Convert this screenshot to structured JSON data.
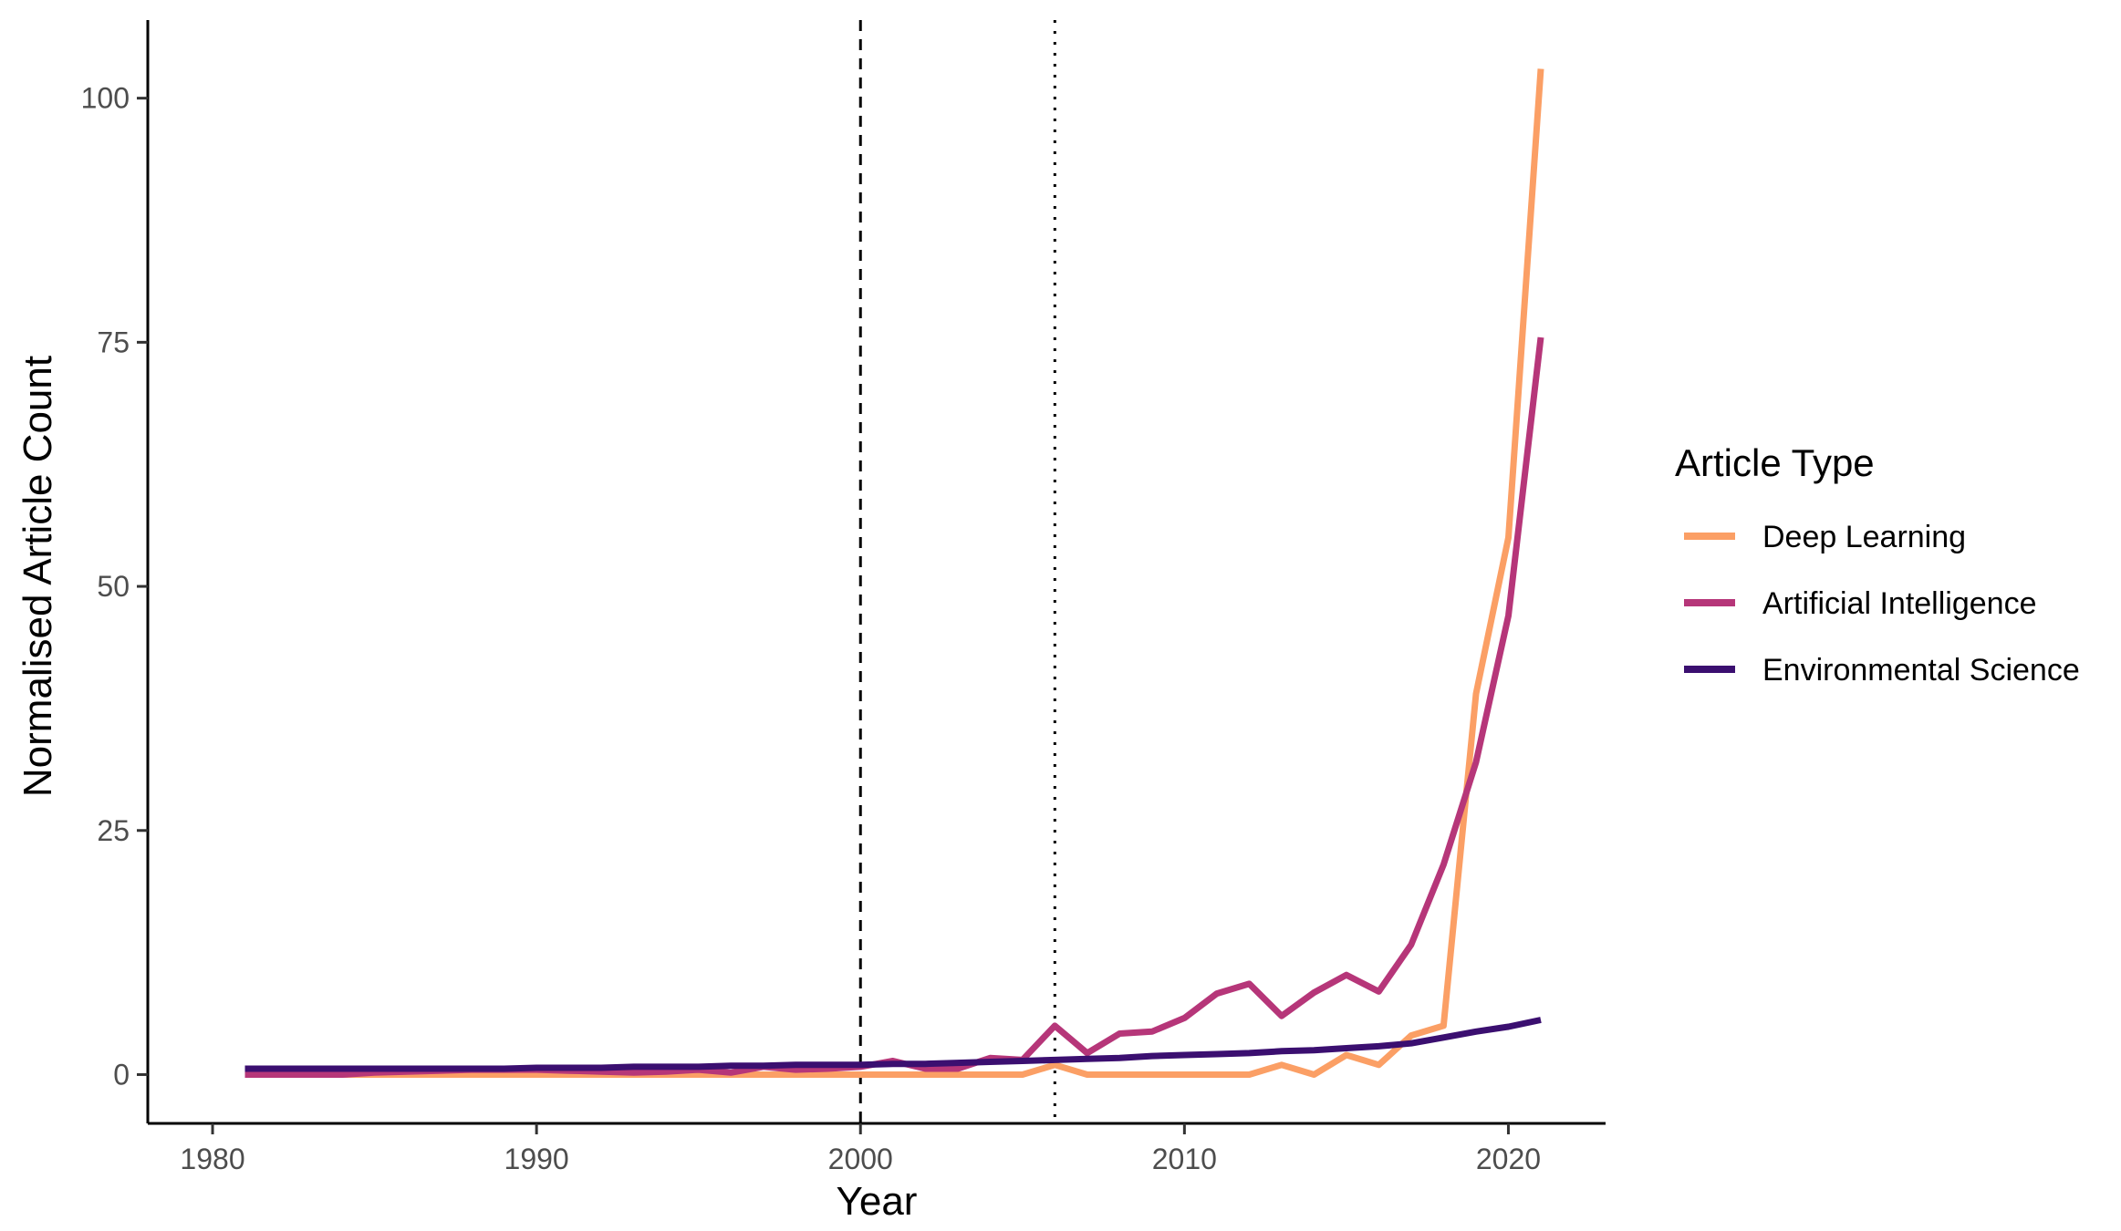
{
  "chart_data": {
    "type": "line",
    "xlabel": "Year",
    "ylabel": "Normalised Article Count",
    "xlim": [
      1978,
      2023
    ],
    "ylim": [
      -5,
      108
    ],
    "x_ticks": [
      1980,
      1990,
      2000,
      2010,
      2020
    ],
    "y_ticks": [
      0,
      25,
      50,
      75,
      100
    ],
    "grid": false,
    "vlines": [
      {
        "x": 2000,
        "style": "dashed"
      },
      {
        "x": 2006,
        "style": "dotted"
      }
    ],
    "legend": {
      "title": "Article Type",
      "placement": "right"
    },
    "series": [
      {
        "name": "Deep Learning",
        "color": "#FB9F65",
        "x": [
          1981,
          1982,
          1983,
          1984,
          1985,
          1986,
          1987,
          1988,
          1989,
          1990,
          1991,
          1992,
          1993,
          1994,
          1995,
          1996,
          1997,
          1998,
          1999,
          2000,
          2001,
          2002,
          2003,
          2004,
          2005,
          2006,
          2007,
          2008,
          2009,
          2010,
          2011,
          2012,
          2013,
          2014,
          2015,
          2016,
          2017,
          2018,
          2019,
          2020,
          2021
        ],
        "values": [
          0,
          0,
          0,
          0,
          0,
          0,
          0,
          0,
          0,
          0,
          0,
          0,
          0,
          0,
          0,
          0,
          0,
          0,
          0,
          0,
          0,
          0,
          0,
          0,
          0,
          1,
          0,
          0,
          0,
          0,
          0,
          0,
          1,
          0,
          2,
          1,
          4,
          5,
          39,
          55,
          103
        ]
      },
      {
        "name": "Artificial Intelligence",
        "color": "#B63679",
        "x": [
          1981,
          1982,
          1983,
          1984,
          1985,
          1986,
          1987,
          1988,
          1989,
          1990,
          1991,
          1992,
          1993,
          1994,
          1995,
          1996,
          1997,
          1998,
          1999,
          2000,
          2001,
          2002,
          2003,
          2004,
          2005,
          2006,
          2007,
          2008,
          2009,
          2010,
          2011,
          2012,
          2013,
          2014,
          2015,
          2016,
          2017,
          2018,
          2019,
          2020,
          2021
        ],
        "values": [
          0,
          0,
          0,
          0,
          0.2,
          0.3,
          0.4,
          0.5,
          0.5,
          0.5,
          0.4,
          0.3,
          0.2,
          0.3,
          0.5,
          0.2,
          0.8,
          0.5,
          0.6,
          0.8,
          1.4,
          0.6,
          0.6,
          1.7,
          1.5,
          5,
          2.2,
          4.2,
          4.4,
          5.8,
          8.3,
          9.3,
          6,
          8.4,
          10.2,
          8.5,
          13.3,
          21.5,
          32,
          47,
          75.5
        ]
      },
      {
        "name": "Environmental Science",
        "color": "#3B0F70",
        "x": [
          1981,
          1982,
          1983,
          1984,
          1985,
          1986,
          1987,
          1988,
          1989,
          1990,
          1991,
          1992,
          1993,
          1994,
          1995,
          1996,
          1997,
          1998,
          1999,
          2000,
          2001,
          2002,
          2003,
          2004,
          2005,
          2006,
          2007,
          2008,
          2009,
          2010,
          2011,
          2012,
          2013,
          2014,
          2015,
          2016,
          2017,
          2018,
          2019,
          2020,
          2021
        ],
        "values": [
          0.6,
          0.6,
          0.6,
          0.6,
          0.6,
          0.6,
          0.6,
          0.6,
          0.6,
          0.7,
          0.7,
          0.7,
          0.8,
          0.8,
          0.8,
          0.9,
          0.9,
          1.0,
          1.0,
          1.0,
          1.1,
          1.1,
          1.2,
          1.3,
          1.4,
          1.5,
          1.6,
          1.7,
          1.9,
          2.0,
          2.1,
          2.2,
          2.4,
          2.5,
          2.7,
          2.9,
          3.2,
          3.8,
          4.4,
          4.9,
          5.6
        ]
      }
    ]
  }
}
